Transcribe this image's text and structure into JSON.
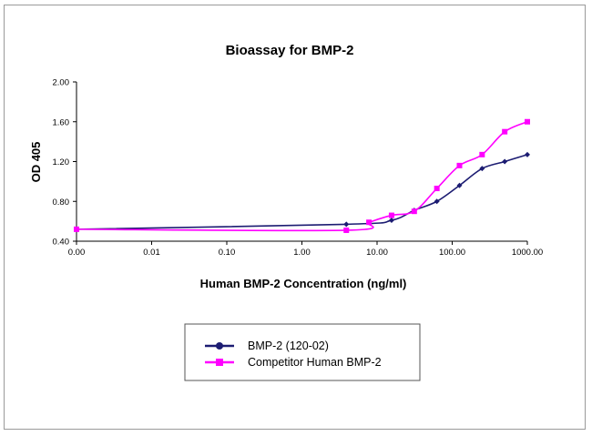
{
  "chart_data": {
    "type": "line",
    "title": "Bioassay for BMP-2",
    "xlabel": "Human BMP-2 Concentration (ng/ml)",
    "ylabel": "OD 405",
    "xscale": "log",
    "xticks": [
      "0.00",
      "0.01",
      "0.10",
      "1.00",
      "10.00",
      "100.00",
      "1000.00"
    ],
    "yticks": [
      "0.40",
      "0.80",
      "1.20",
      "1.60",
      "2.00"
    ],
    "xlim": [
      0.001,
      1000
    ],
    "ylim": [
      0.4,
      2.0
    ],
    "legend_position": "bottom-center",
    "series": [
      {
        "name": "BMP-2 (120-02)",
        "color": "#1c1c72",
        "marker": "diamond",
        "x": [
          0.001,
          3.9,
          15.6,
          31.25,
          62.5,
          125,
          250,
          500,
          1000
        ],
        "y": [
          0.52,
          0.57,
          0.61,
          0.71,
          0.8,
          0.96,
          1.13,
          1.2,
          1.27
        ]
      },
      {
        "name": "Competitor Human BMP-2",
        "color": "#ff00ff",
        "marker": "square",
        "x": [
          0.001,
          3.9,
          7.8,
          15.6,
          31.25,
          62.5,
          125,
          250,
          500,
          1000
        ],
        "y": [
          0.52,
          0.51,
          0.59,
          0.66,
          0.7,
          0.93,
          1.16,
          1.27,
          1.5,
          1.6
        ]
      }
    ]
  }
}
